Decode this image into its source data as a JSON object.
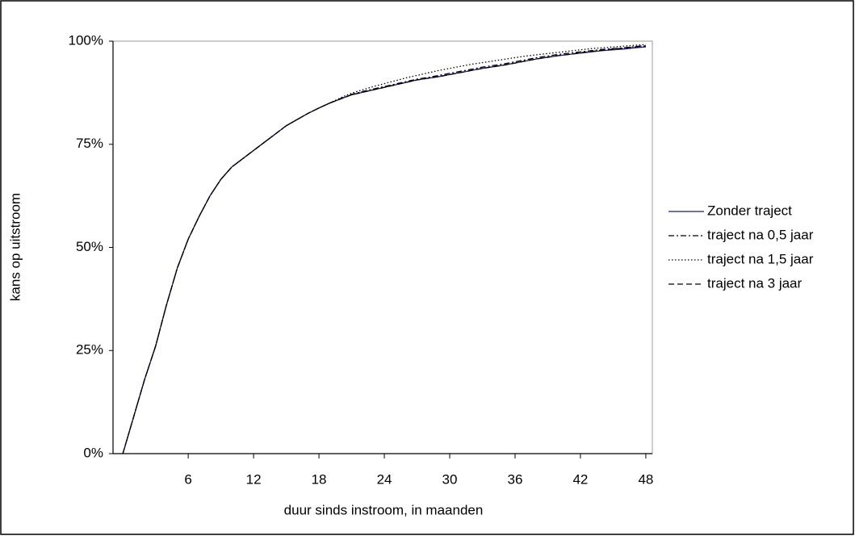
{
  "chart_data": {
    "type": "line",
    "x_label": "duur sinds instroom, in maanden",
    "y_label": "kans op uitstroom",
    "x": [
      0,
      1,
      2,
      3,
      4,
      5,
      6,
      7,
      8,
      9,
      10,
      11,
      12,
      13,
      14,
      15,
      16,
      17,
      18,
      19,
      20,
      21,
      22,
      23,
      24,
      25,
      26,
      27,
      28,
      29,
      30,
      31,
      32,
      33,
      34,
      35,
      36,
      37,
      38,
      39,
      40,
      41,
      42,
      43,
      44,
      45,
      46,
      47,
      48
    ],
    "xlim": [
      -0.9,
      48.6
    ],
    "xticks": [
      6,
      12,
      18,
      24,
      30,
      36,
      42,
      48
    ],
    "ylim": [
      0,
      100
    ],
    "yticks": [
      {
        "value": 0,
        "label": "0%"
      },
      {
        "value": 25,
        "label": "25%"
      },
      {
        "value": 50,
        "label": "50%"
      },
      {
        "value": 75,
        "label": "75%"
      },
      {
        "value": 100,
        "label": "100%"
      }
    ],
    "legend": "right",
    "series": [
      {
        "name": "Zonder traject",
        "color": "#1a1a80",
        "dash": "none",
        "values": [
          0,
          9,
          18,
          26,
          36,
          45,
          52,
          57.5,
          62.5,
          66.5,
          69.5,
          71.5,
          73.5,
          75.5,
          77.5,
          79.5,
          81,
          82.5,
          83.8,
          85,
          86,
          87,
          87.6,
          88.2,
          88.8,
          89.4,
          90,
          90.6,
          91,
          91.4,
          91.9,
          92.4,
          92.9,
          93.4,
          93.8,
          94.2,
          94.7,
          95.2,
          95.7,
          96.1,
          96.5,
          96.8,
          97.1,
          97.4,
          97.7,
          97.9,
          98.1,
          98.4,
          98.6
        ]
      },
      {
        "name": "traject na 0,5 jaar",
        "color": "#000000",
        "dash": "7 3 2 3",
        "values": [
          0,
          9,
          18,
          26,
          36,
          45,
          52,
          57.5,
          62.5,
          66.5,
          69.5,
          71.5,
          73.5,
          75.5,
          77.5,
          79.5,
          81,
          82.5,
          83.8,
          85,
          86.1,
          87.1,
          87.8,
          88.4,
          89,
          89.6,
          90.2,
          90.8,
          91.2,
          91.7,
          92.2,
          92.7,
          93.2,
          93.7,
          94.1,
          94.5,
          95,
          95.5,
          96,
          96.4,
          96.8,
          97.1,
          97.4,
          97.7,
          98,
          98.2,
          98.4,
          98.7,
          98.9
        ]
      },
      {
        "name": "traject na 1,5 jaar",
        "color": "#000000",
        "dash": "1.5 2.5",
        "values": [
          0,
          9,
          18,
          26,
          36,
          45,
          52,
          57.5,
          62.5,
          66.5,
          69.5,
          71.5,
          73.5,
          75.5,
          77.5,
          79.5,
          81,
          82.5,
          83.8,
          85,
          86.3,
          87.4,
          88.2,
          89,
          89.7,
          90.4,
          91.1,
          91.7,
          92.3,
          92.9,
          93.4,
          93.9,
          94.4,
          94.8,
          95.2,
          95.6,
          96,
          96.4,
          96.7,
          97,
          97.3,
          97.6,
          97.9,
          98.2,
          98.4,
          98.6,
          98.8,
          99,
          99.2
        ]
      },
      {
        "name": "traject na 3 jaar",
        "color": "#000000",
        "dash": "7 4",
        "values": [
          0,
          9,
          18,
          26,
          36,
          45,
          52,
          57.5,
          62.5,
          66.5,
          69.5,
          71.5,
          73.5,
          75.5,
          77.5,
          79.5,
          81,
          82.5,
          83.8,
          85,
          86,
          87,
          87.6,
          88.2,
          88.8,
          89.4,
          90,
          90.6,
          91,
          91.4,
          91.9,
          92.4,
          92.9,
          93.4,
          93.8,
          94.2,
          94.7,
          95.2,
          95.7,
          96.1,
          96.5,
          96.8,
          97.2,
          97.5,
          97.8,
          98.1,
          98.3,
          98.6,
          98.8
        ]
      }
    ]
  }
}
